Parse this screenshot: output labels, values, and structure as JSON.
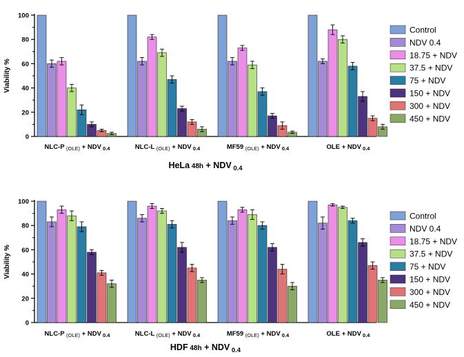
{
  "legend": {
    "entries": [
      {
        "name": "Control",
        "color": "#7ea2d8"
      },
      {
        "name": "NDV 0.4",
        "color": "#a58bd6"
      },
      {
        "name": "18.75 + NDV",
        "color": "#ea8ee8"
      },
      {
        "name": "37.5 + NDV",
        "color": "#b6df86"
      },
      {
        "name": "75 + NDV",
        "color": "#2a7ea3"
      },
      {
        "name": "150 + NDV",
        "color": "#4e337e"
      },
      {
        "name": "300 + NDV",
        "color": "#e07474"
      },
      {
        "name": "450 + NDV",
        "color": "#8aa866"
      }
    ]
  },
  "chart_data": [
    {
      "type": "bar",
      "title": {
        "main": "HeLa",
        "sub": "48h",
        "tail": "+ NDV",
        "subscript": "0.4"
      },
      "ylabel": "Viability %",
      "ylim": [
        0,
        100
      ],
      "yticks": [
        0,
        20,
        40,
        60,
        80,
        100
      ],
      "grid": false,
      "legend_position": "right",
      "categories": [
        {
          "main": "NLC-P",
          "sub": "(OLE)",
          "tail": "+ NDV",
          "subscript": "0.4"
        },
        {
          "main": "NLC-L",
          "sub": "(OLE)",
          "tail": "+ NDV",
          "subscript": "0.4"
        },
        {
          "main": "MF59",
          "sub": "(OLE)",
          "tail": "+ NDV",
          "subscript": "0.4"
        },
        {
          "main": "OLE",
          "sub": "",
          "tail": "+ NDV",
          "subscript": "0.4"
        }
      ],
      "series": [
        {
          "name": "Control",
          "values": [
            100,
            100,
            100,
            100
          ],
          "errors": [
            0,
            0,
            0,
            0
          ]
        },
        {
          "name": "NDV 0.4",
          "values": [
            60,
            62,
            62,
            62
          ],
          "errors": [
            3,
            3,
            3,
            2
          ]
        },
        {
          "name": "18.75 + NDV",
          "values": [
            62,
            82,
            73,
            88
          ],
          "errors": [
            3,
            2,
            2,
            4
          ]
        },
        {
          "name": "37.5 + NDV",
          "values": [
            40,
            69,
            59,
            80
          ],
          "errors": [
            3,
            3,
            3,
            3
          ]
        },
        {
          "name": "75 + NDV",
          "values": [
            22,
            47,
            37,
            58
          ],
          "errors": [
            4,
            3,
            3,
            3
          ]
        },
        {
          "name": "150 + NDV",
          "values": [
            10,
            23,
            17,
            33
          ],
          "errors": [
            2,
            2,
            2,
            4
          ]
        },
        {
          "name": "300 + NDV",
          "values": [
            5,
            12,
            9,
            15
          ],
          "errors": [
            1,
            2,
            3,
            2
          ]
        },
        {
          "name": "450 + NDV",
          "values": [
            2.5,
            6,
            3.5,
            8
          ],
          "errors": [
            1,
            2,
            1,
            2
          ]
        }
      ]
    },
    {
      "type": "bar",
      "title": {
        "main": "HDF",
        "sub": "48h",
        "tail": "+ NDV",
        "subscript": "0.4"
      },
      "ylabel": "Viability %",
      "ylim": [
        0,
        100
      ],
      "yticks": [
        0,
        20,
        40,
        60,
        80,
        100
      ],
      "grid": false,
      "legend_position": "right",
      "categories": [
        {
          "main": "NLC-P",
          "sub": "(OLE)",
          "tail": "+ NDV",
          "subscript": "0.4"
        },
        {
          "main": "NLC-L",
          "sub": "(OLE)",
          "tail": "+ NDV",
          "subscript": "0.4"
        },
        {
          "main": "MF59",
          "sub": "(OLE)",
          "tail": "+ NDV",
          "subscript": "0.4"
        },
        {
          "main": "OLE",
          "sub": "",
          "tail": "+ NDV",
          "subscript": "0.4"
        }
      ],
      "series": [
        {
          "name": "Control",
          "values": [
            100,
            100,
            100,
            100
          ],
          "errors": [
            0,
            0,
            0,
            0
          ]
        },
        {
          "name": "NDV 0.4",
          "values": [
            83,
            86,
            84,
            82
          ],
          "errors": [
            4,
            3,
            3,
            5
          ]
        },
        {
          "name": "18.75 + NDV",
          "values": [
            93,
            96,
            93,
            97
          ],
          "errors": [
            3,
            2,
            2,
            1
          ]
        },
        {
          "name": "37.5 + NDV",
          "values": [
            88,
            92,
            89,
            95
          ],
          "errors": [
            4,
            2,
            4,
            1
          ]
        },
        {
          "name": "75 + NDV",
          "values": [
            79,
            81,
            80,
            84
          ],
          "errors": [
            4,
            3,
            3,
            2
          ]
        },
        {
          "name": "150 + NDV",
          "values": [
            58,
            62,
            62,
            66
          ],
          "errors": [
            2,
            4,
            3,
            3
          ]
        },
        {
          "name": "300 + NDV",
          "values": [
            41,
            45,
            44,
            47
          ],
          "errors": [
            2,
            3,
            4,
            3
          ]
        },
        {
          "name": "450 + NDV",
          "values": [
            32,
            35,
            30,
            35
          ],
          "errors": [
            3,
            2,
            3,
            2
          ]
        }
      ]
    }
  ]
}
